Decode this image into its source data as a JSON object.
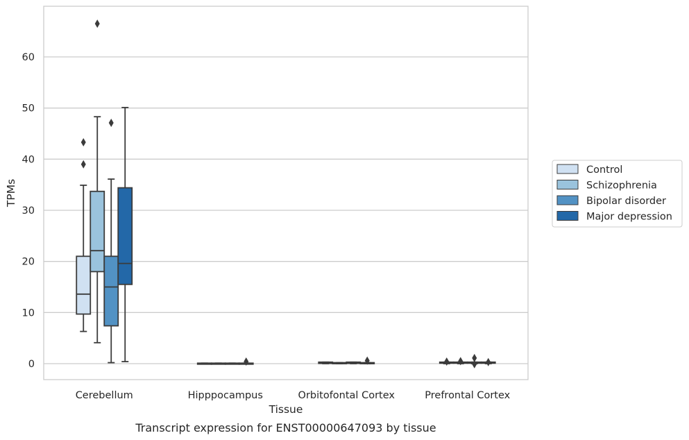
{
  "chart_data": {
    "type": "box",
    "xlabel": "Tissue",
    "ylabel": "TPMs",
    "caption": "Transcript expression for ENST00000647093 by tissue",
    "categories": [
      "Cerebellum",
      "Hipppocampus",
      "Orbitofontal Cortex",
      "Prefrontal Cortex"
    ],
    "ylim": [
      -3.2,
      70.2
    ],
    "yticks": [
      0,
      10,
      20,
      30,
      40,
      50,
      60
    ],
    "grid": true,
    "legend_position": "right",
    "series": [
      {
        "name": "Control",
        "color": "#d0e1f2",
        "boxes": [
          {
            "min": 6.3,
            "q1": 9.7,
            "median": 13.6,
            "q3": 21.0,
            "max": 34.9,
            "outliers": [
              39.0,
              43.3
            ]
          },
          {
            "min": 0.0,
            "q1": 0.0,
            "median": 0.05,
            "q3": 0.1,
            "max": 0.1,
            "outliers": []
          },
          {
            "min": 0.0,
            "q1": 0.05,
            "median": 0.15,
            "q3": 0.3,
            "max": 0.3,
            "outliers": []
          },
          {
            "min": 0.0,
            "q1": 0.1,
            "median": 0.2,
            "q3": 0.3,
            "max": 0.3,
            "outliers": [
              0.4
            ]
          }
        ]
      },
      {
        "name": "Schizophrenia",
        "color": "#9ac3dd",
        "boxes": [
          {
            "min": 4.1,
            "q1": 18.0,
            "median": 22.1,
            "q3": 33.7,
            "max": 48.3,
            "outliers": [
              66.5
            ]
          },
          {
            "min": 0.0,
            "q1": 0.0,
            "median": 0.05,
            "q3": 0.1,
            "max": 0.1,
            "outliers": []
          },
          {
            "min": 0.0,
            "q1": 0.05,
            "median": 0.1,
            "q3": 0.2,
            "max": 0.2,
            "outliers": []
          },
          {
            "min": 0.0,
            "q1": 0.1,
            "median": 0.2,
            "q3": 0.3,
            "max": 0.3,
            "outliers": [
              0.5
            ]
          }
        ]
      },
      {
        "name": "Bipolar disorder",
        "color": "#5292c4",
        "boxes": [
          {
            "min": 0.2,
            "q1": 7.4,
            "median": 15.0,
            "q3": 21.0,
            "max": 36.1,
            "outliers": [
              47.1
            ]
          },
          {
            "min": 0.0,
            "q1": 0.0,
            "median": 0.05,
            "q3": 0.1,
            "max": 0.1,
            "outliers": []
          },
          {
            "min": 0.0,
            "q1": 0.05,
            "median": 0.15,
            "q3": 0.3,
            "max": 0.3,
            "outliers": []
          },
          {
            "min": 0.0,
            "q1": 0.1,
            "median": 0.2,
            "q3": 0.3,
            "max": 0.3,
            "outliers": [
              1.1,
              -0.1
            ]
          }
        ]
      },
      {
        "name": "Major depression",
        "color": "#2368a8",
        "boxes": [
          {
            "min": 0.4,
            "q1": 15.5,
            "median": 19.6,
            "q3": 34.4,
            "max": 50.1,
            "outliers": []
          },
          {
            "min": 0.0,
            "q1": 0.0,
            "median": 0.05,
            "q3": 0.1,
            "max": 0.1,
            "outliers": [
              0.4
            ]
          },
          {
            "min": 0.0,
            "q1": 0.05,
            "median": 0.1,
            "q3": 0.2,
            "max": 0.2,
            "outliers": [
              0.6
            ]
          },
          {
            "min": 0.0,
            "q1": 0.1,
            "median": 0.2,
            "q3": 0.3,
            "max": 0.3,
            "outliers": [
              0.3
            ]
          }
        ]
      }
    ]
  }
}
